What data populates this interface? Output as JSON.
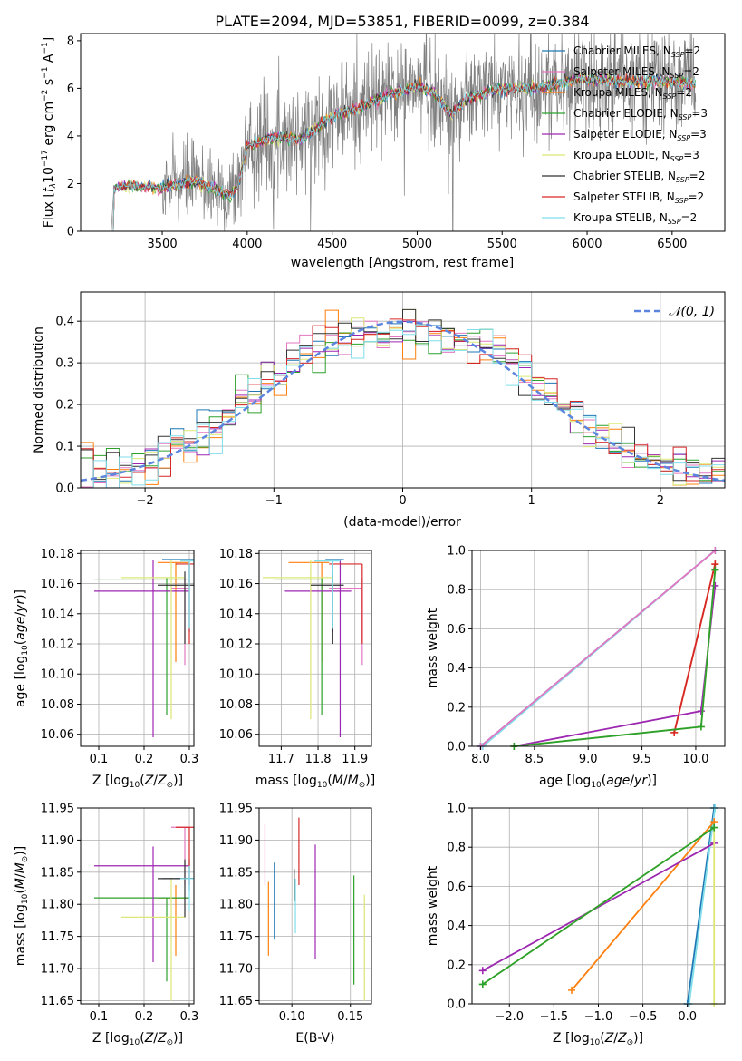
{
  "title": "PLATE=2094, MJD=53851, FIBERID=0099, z=0.384",
  "chart_data": [
    {
      "id": "spectrum",
      "type": "line",
      "xlabel": "wavelength [Angstrom, rest frame]",
      "ylabel": "Flux [f_λ 10^-17 erg cm^-2 s^-1 A^-1]",
      "xlim": [
        3020,
        6810
      ],
      "ylim": [
        0,
        8.3
      ],
      "xticks": [
        3500,
        4000,
        4500,
        5000,
        5500,
        6000,
        6500
      ],
      "yticks": [
        0,
        2,
        4,
        6,
        8
      ],
      "legend_position": "right",
      "grid": false,
      "data_series": {
        "name": "data",
        "color": "#808080"
      },
      "models": [
        {
          "name": "Chabrier MILES, N_SSP=2",
          "color": "#1f77b4"
        },
        {
          "name": "Salpeter MILES, N_SSP=2",
          "color": "#e377c2"
        },
        {
          "name": "Kroupa MILES, N_SSP=2",
          "color": "#ff7f0e"
        },
        {
          "name": "Chabrier ELODIE, N_SSP=3",
          "color": "#2ca02c"
        },
        {
          "name": "Salpeter ELODIE, N_SSP=3",
          "color": "#9c27b0"
        },
        {
          "name": "Kroupa ELODIE, N_SSP=3",
          "color": "#dce775"
        },
        {
          "name": "Chabrier STELIB, N_SSP=2",
          "color": "#333333"
        },
        {
          "name": "Salpeter STELIB, N_SSP=2",
          "color": "#d62728"
        },
        {
          "name": "Kroupa STELIB, N_SSP=2",
          "color": "#80deea"
        }
      ],
      "continuum": [
        [
          3200,
          0
        ],
        [
          3215,
          1.7
        ],
        [
          3230,
          1.85
        ],
        [
          3300,
          1.9
        ],
        [
          3450,
          1.85
        ],
        [
          3500,
          1.8
        ],
        [
          3600,
          2.0
        ],
        [
          3700,
          2.1
        ],
        [
          3800,
          1.8
        ],
        [
          3900,
          1.5
        ],
        [
          3950,
          2.0
        ],
        [
          4000,
          3.6
        ],
        [
          4100,
          3.8
        ],
        [
          4200,
          4.0
        ],
        [
          4300,
          3.8
        ],
        [
          4400,
          4.3
        ],
        [
          4500,
          4.8
        ],
        [
          4700,
          5.3
        ],
        [
          4850,
          5.8
        ],
        [
          5000,
          6.1
        ],
        [
          5100,
          5.8
        ],
        [
          5150,
          5.4
        ],
        [
          5200,
          4.9
        ],
        [
          5300,
          5.6
        ],
        [
          5500,
          6.0
        ],
        [
          5700,
          6.0
        ],
        [
          5890,
          6.3
        ],
        [
          6000,
          6.4
        ],
        [
          6200,
          6.3
        ],
        [
          6400,
          6.3
        ],
        [
          6600,
          6.2
        ]
      ]
    },
    {
      "id": "residual-histogram",
      "type": "histogram",
      "xlabel": "(data-model)/error",
      "ylabel": "Normed distribution",
      "xlim": [
        -2.5,
        2.5
      ],
      "ylim": [
        0,
        0.47
      ],
      "xticks": [
        -2,
        -1,
        0,
        1,
        2
      ],
      "yticks": [
        0.0,
        0.1,
        0.2,
        0.3,
        0.4
      ],
      "grid": true,
      "legend": "N(0,1)",
      "reference_color": "#5b85de"
    },
    {
      "id": "age-vs-metallicity",
      "type": "errorbar",
      "xlabel": "Z [log10(Z/Z⊙)]",
      "ylabel": "age [log10(age/yr)]",
      "xlim": [
        0.06,
        0.31
      ],
      "ylim": [
        10.052,
        10.182
      ],
      "xticks": [
        0.1,
        0.2,
        0.3
      ],
      "yticks": [
        10.06,
        10.08,
        10.1,
        10.12,
        10.14,
        10.16,
        10.18
      ],
      "grid": true
    },
    {
      "id": "age-vs-mass",
      "type": "errorbar",
      "xlabel": "mass [log10(M/M⊙)]",
      "xlim": [
        11.64,
        11.945
      ],
      "ylim": [
        10.052,
        10.182
      ],
      "xticks": [
        11.7,
        11.8,
        11.9
      ],
      "yticks": [
        10.06,
        10.08,
        10.1,
        10.12,
        10.14,
        10.16,
        10.18
      ],
      "grid": true
    },
    {
      "id": "mass-weight-vs-age",
      "type": "line",
      "xlabel": "age [log10(age/yr)]",
      "ylabel": "mass weight",
      "xlim": [
        7.92,
        10.27
      ],
      "ylim": [
        0,
        1
      ],
      "xticks": [
        8.0,
        8.5,
        9.0,
        9.5,
        10.0
      ],
      "yticks": [
        0.0,
        0.2,
        0.4,
        0.6,
        0.8,
        1.0
      ],
      "grid": true
    },
    {
      "id": "mass-vs-metallicity",
      "type": "errorbar",
      "xlabel": "Z [log10(Z/Z⊙)]",
      "ylabel": "mass [log10(M/M⊙)]",
      "xlim": [
        0.06,
        0.31
      ],
      "ylim": [
        11.645,
        11.95
      ],
      "xticks": [
        0.1,
        0.2,
        0.3
      ],
      "yticks": [
        11.65,
        11.7,
        11.75,
        11.8,
        11.85,
        11.9,
        11.95
      ],
      "grid": true
    },
    {
      "id": "mass-vs-ebv",
      "type": "errorbar",
      "xlabel": "E(B-V)",
      "xlim": [
        0.072,
        0.168
      ],
      "ylim": [
        11.645,
        11.95
      ],
      "xticks": [
        0.1,
        0.15
      ],
      "yticks": [
        11.65,
        11.7,
        11.75,
        11.8,
        11.85,
        11.9,
        11.95
      ],
      "grid": true
    },
    {
      "id": "mass-weight-vs-metallicity",
      "type": "line",
      "xlabel": "Z [log10(Z/Z⊙)]",
      "ylabel": "mass weight",
      "xlim": [
        -2.42,
        0.42
      ],
      "ylim": [
        0,
        1
      ],
      "xticks": [
        -2.0,
        -1.5,
        -1.0,
        -0.5,
        0.0
      ],
      "yticks": [
        0.0,
        0.2,
        0.4,
        0.6,
        0.8,
        1.0
      ],
      "grid": true
    }
  ],
  "fits": [
    {
      "color": "#1f77b4",
      "Z": 0.3,
      "Zerr": [
        0.24,
        0.31
      ],
      "age": 10.176,
      "ageerr": [
        10.128,
        10.176
      ],
      "mass": 11.84,
      "masserr": [
        11.82,
        11.87
      ],
      "ebv": 0.085,
      "ebverr": [
        11.745,
        11.865
      ]
    },
    {
      "color": "#e377c2",
      "Z": 0.29,
      "Zerr": [
        0.26,
        0.3
      ],
      "age": 10.157,
      "ageerr": [
        10.106,
        10.164
      ],
      "mass": 11.92,
      "masserr": [
        11.83,
        11.92
      ],
      "ebv": 0.077,
      "ebverr": [
        11.83,
        11.925
      ]
    },
    {
      "color": "#ff7f0e",
      "Z": 0.27,
      "Zerr": [
        0.23,
        0.3
      ],
      "age": 10.174,
      "ageerr": [
        10.108,
        10.174
      ],
      "mass": 11.81,
      "masserr": [
        11.72,
        11.83
      ],
      "ebv": 0.08,
      "ebverr": [
        11.72,
        11.835
      ]
    },
    {
      "color": "#2ca02c",
      "Z": 0.25,
      "Zerr": [
        0.09,
        0.3
      ],
      "age": 10.163,
      "ageerr": [
        10.073,
        10.164
      ],
      "mass": 11.81,
      "masserr": [
        11.68,
        11.81
      ],
      "ebv": 0.153,
      "ebverr": [
        11.675,
        11.845
      ]
    },
    {
      "color": "#9c27b0",
      "Z": 0.22,
      "Zerr": [
        0.09,
        0.3
      ],
      "age": 10.155,
      "ageerr": [
        10.058,
        10.176
      ],
      "mass": 11.86,
      "masserr": [
        11.71,
        11.89
      ],
      "ebv": 0.12,
      "ebverr": [
        11.715,
        11.893
      ]
    },
    {
      "color": "#dce775",
      "Z": 0.26,
      "Zerr": [
        0.15,
        0.29
      ],
      "age": 10.164,
      "ageerr": [
        10.07,
        10.176
      ],
      "mass": 11.78,
      "masserr": [
        11.65,
        11.84
      ],
      "ebv": 0.162,
      "ebverr": [
        11.65,
        11.815
      ]
    },
    {
      "color": "#333333",
      "Z": 0.29,
      "Zerr": [
        0.23,
        0.31
      ],
      "age": 10.159,
      "ageerr": [
        10.12,
        10.168
      ],
      "mass": 11.84,
      "masserr": [
        11.78,
        11.87
      ],
      "ebv": 0.102,
      "ebverr": [
        11.805,
        11.855
      ]
    },
    {
      "color": "#d62728",
      "Z": 0.3,
      "Zerr": [
        0.27,
        0.31
      ],
      "age": 10.173,
      "ageerr": [
        10.12,
        10.173
      ],
      "mass": 11.92,
      "masserr": [
        11.83,
        11.92
      ],
      "ebv": 0.106,
      "ebverr": [
        11.83,
        11.935
      ]
    },
    {
      "color": "#80deea",
      "Z": 0.3,
      "Zerr": [
        0.28,
        0.31
      ],
      "age": 10.175,
      "ageerr": [
        10.13,
        10.176
      ],
      "mass": 11.84,
      "masserr": [
        11.79,
        11.86
      ],
      "ebv": 0.103,
      "ebverr": [
        11.755,
        11.84
      ]
    }
  ],
  "weights_age": [
    {
      "color": "#1f77b4",
      "points": [
        [
          8.0,
          0.0
        ],
        [
          10.18,
          1.0
        ]
      ]
    },
    {
      "color": "#80deea",
      "points": [
        [
          8.02,
          0.0
        ],
        [
          10.18,
          1.0
        ]
      ]
    },
    {
      "color": "#e377c2",
      "points": [
        [
          8.0,
          0.0
        ],
        [
          10.18,
          1.0
        ]
      ]
    },
    {
      "color": "#ff7f0e",
      "points": [
        [
          9.8,
          0.07
        ],
        [
          10.18,
          0.93
        ]
      ]
    },
    {
      "color": "#d62728",
      "points": [
        [
          9.8,
          0.07
        ],
        [
          10.18,
          0.93
        ]
      ]
    },
    {
      "color": "#9c27b0",
      "points": [
        [
          8.31,
          0.0
        ],
        [
          10.05,
          0.18
        ],
        [
          10.18,
          0.82
        ]
      ]
    },
    {
      "color": "#dce775",
      "points": [
        [
          8.31,
          0.0
        ],
        [
          10.05,
          0.1
        ],
        [
          10.18,
          0.9
        ]
      ]
    },
    {
      "color": "#2ca02c",
      "points": [
        [
          8.31,
          0.0
        ],
        [
          10.05,
          0.1
        ],
        [
          10.18,
          0.9
        ]
      ]
    }
  ],
  "weights_Z": [
    {
      "color": "#1f77b4",
      "points": [
        [
          0.0,
          0.0
        ],
        [
          0.3,
          1.0
        ]
      ]
    },
    {
      "color": "#80deea",
      "points": [
        [
          0.02,
          0.0
        ],
        [
          0.31,
          1.0
        ]
      ]
    },
    {
      "color": "#ff7f0e",
      "points": [
        [
          -1.3,
          0.07
        ],
        [
          0.3,
          0.93
        ]
      ]
    },
    {
      "color": "#9c27b0",
      "points": [
        [
          -2.3,
          0.17
        ],
        [
          0.3,
          0.82
        ]
      ]
    },
    {
      "color": "#dce775",
      "points": [
        [
          -2.3,
          0.1
        ],
        [
          0.3,
          0.9
        ],
        [
          0.3,
          0.0
        ]
      ]
    },
    {
      "color": "#2ca02c",
      "points": [
        [
          -2.3,
          0.1
        ],
        [
          0.3,
          0.9
        ]
      ]
    }
  ],
  "labels": {
    "age_vs_metallicity_ylabel": "age  [log",
    "mass_ylabel": "mass [log",
    "weight_ylabel": "mass weight",
    "Z_xlabel": "Z [log",
    "mass_xlabel": "mass [log",
    "age_xlabel": "age  [log",
    "ebv_xlabel": "E(B-V)",
    "hist_xlabel": "(data-model)/error",
    "hist_ylabel": "Normed distribution",
    "spec_xlabel": "wavelength [Angstrom, rest frame]",
    "normal_legend": "𝒩(0, 1)"
  }
}
